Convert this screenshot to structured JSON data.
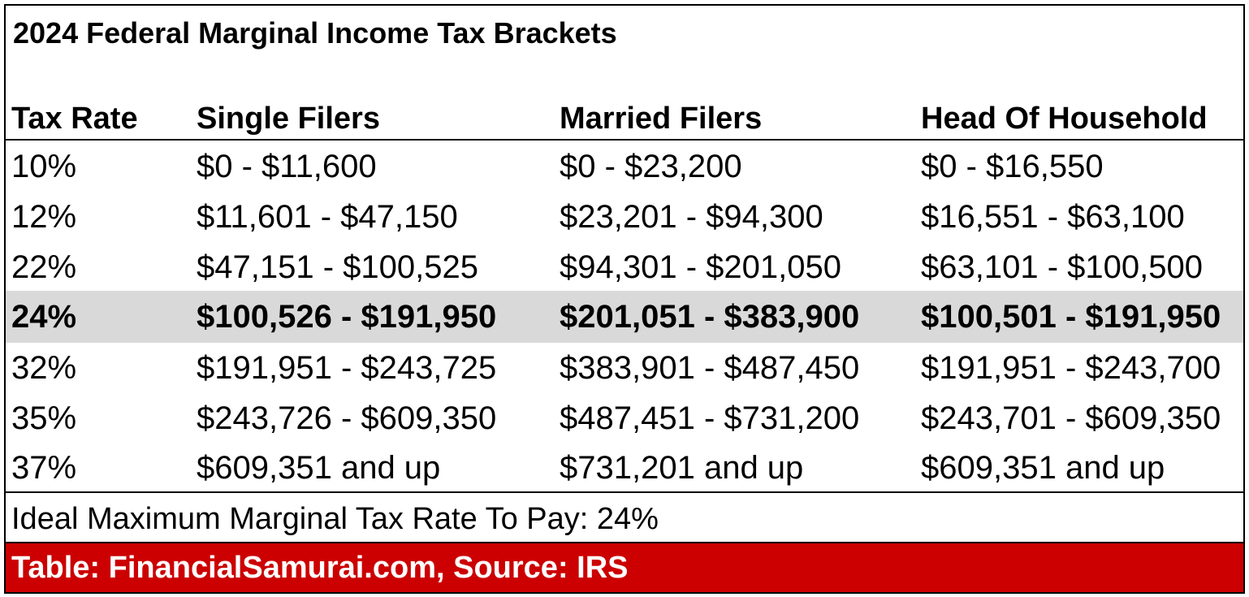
{
  "title": "2024 Federal Marginal Income Tax Brackets",
  "table": {
    "headers": [
      "Tax Rate",
      "Single Filers",
      "Married Filers",
      "Head Of Household"
    ],
    "rows": [
      [
        "10%",
        "$0 - $11,600",
        "$0 - $23,200",
        "$0 - $16,550"
      ],
      [
        "12%",
        "$11,601 - $47,150",
        "$23,201 - $94,300",
        "$16,551 - $63,100"
      ],
      [
        "22%",
        "$47,151 - $100,525",
        "$94,301 - $201,050",
        "$63,101 - $100,500"
      ],
      [
        "24%",
        "$100,526 - $191,950",
        "$201,051 - $383,900",
        "$100,501 - $191,950"
      ],
      [
        "32%",
        "$191,951 - $243,725",
        "$383,901 - $487,450",
        "$191,951 - $243,700"
      ],
      [
        "35%",
        "$243,726 - $609,350",
        "$487,451 - $731,200",
        "$243,701 - $609,350"
      ],
      [
        "37%",
        "$609,351 and up",
        "$731,201 and up",
        "$609,351 and up"
      ]
    ],
    "highlighted_row": "24%"
  },
  "note": "Ideal Maximum Marginal Tax Rate To Pay: 24%",
  "footer": "Table: FinancialSamurai.com, Source: IRS",
  "colors": {
    "highlight_row": "#d9d9d9",
    "footer_background": "#cc0000",
    "footer_text": "#ffffff",
    "border": "#000000"
  }
}
